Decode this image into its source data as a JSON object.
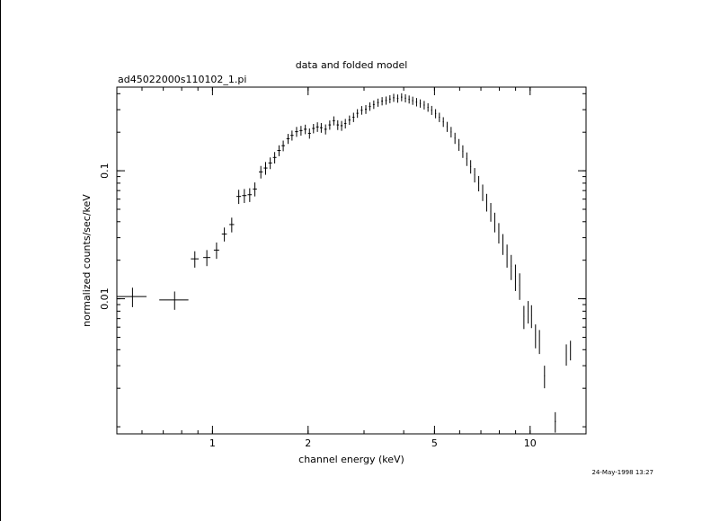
{
  "chart_data": {
    "type": "scatter",
    "title": "data and folded model",
    "subtitle": "ad45022000s110102_1.pi",
    "xlabel": "channel energy (keV)",
    "ylabel": "normalized counts/sec/keV",
    "timestamp": "24-May-1998 13:27",
    "xscale": "log",
    "yscale": "log",
    "xlim": [
      0.5,
      15
    ],
    "ylim": [
      0.00088,
      0.45
    ],
    "x_ticks": [
      {
        "value": 1,
        "label": "1"
      },
      {
        "value": 2,
        "label": "2"
      },
      {
        "value": 5,
        "label": "5"
      },
      {
        "value": 10,
        "label": "10"
      }
    ],
    "y_ticks": [
      {
        "value": 0.01,
        "label": "0.01"
      },
      {
        "value": 0.1,
        "label": "0.1"
      }
    ],
    "grid": false,
    "color": "#000000",
    "points": [
      [
        0.56,
        0.0104,
        0.06,
        0.0018
      ],
      [
        0.76,
        0.0098,
        0.08,
        0.0016
      ],
      [
        0.88,
        0.0205,
        0.025,
        0.003
      ],
      [
        0.96,
        0.021,
        0.025,
        0.003
      ],
      [
        1.03,
        0.024,
        0.02,
        0.0035
      ],
      [
        1.09,
        0.032,
        0.02,
        0.004
      ],
      [
        1.15,
        0.038,
        0.02,
        0.005
      ],
      [
        1.21,
        0.063,
        0.02,
        0.008
      ],
      [
        1.26,
        0.064,
        0.02,
        0.008
      ],
      [
        1.31,
        0.065,
        0.02,
        0.008
      ],
      [
        1.36,
        0.072,
        0.02,
        0.009
      ],
      [
        1.42,
        0.098,
        0.02,
        0.011
      ],
      [
        1.47,
        0.105,
        0.02,
        0.012
      ],
      [
        1.52,
        0.115,
        0.02,
        0.012
      ],
      [
        1.57,
        0.127,
        0.02,
        0.013
      ],
      [
        1.62,
        0.144,
        0.02,
        0.014
      ],
      [
        1.67,
        0.157,
        0.02,
        0.015
      ],
      [
        1.73,
        0.178,
        0.02,
        0.016
      ],
      [
        1.78,
        0.189,
        0.02,
        0.017
      ],
      [
        1.84,
        0.202,
        0.02,
        0.018
      ],
      [
        1.9,
        0.206,
        0.02,
        0.018
      ],
      [
        1.96,
        0.211,
        0.02,
        0.018
      ],
      [
        2.02,
        0.196,
        0.02,
        0.018
      ],
      [
        2.08,
        0.214,
        0.02,
        0.018
      ],
      [
        2.14,
        0.22,
        0.02,
        0.019
      ],
      [
        2.2,
        0.217,
        0.02,
        0.019
      ],
      [
        2.27,
        0.211,
        0.02,
        0.019
      ],
      [
        2.34,
        0.228,
        0.02,
        0.019
      ],
      [
        2.41,
        0.246,
        0.02,
        0.02
      ],
      [
        2.48,
        0.228,
        0.02,
        0.02
      ],
      [
        2.55,
        0.225,
        0.02,
        0.02
      ],
      [
        2.62,
        0.234,
        0.02,
        0.02
      ],
      [
        2.7,
        0.249,
        0.02,
        0.021
      ],
      [
        2.78,
        0.262,
        0.02,
        0.022
      ],
      [
        2.86,
        0.281,
        0.02,
        0.022
      ],
      [
        2.95,
        0.297,
        0.02,
        0.023
      ],
      [
        3.04,
        0.302,
        0.02,
        0.024
      ],
      [
        3.13,
        0.318,
        0.02,
        0.024
      ],
      [
        3.22,
        0.329,
        0.02,
        0.025
      ],
      [
        3.32,
        0.341,
        0.02,
        0.025
      ],
      [
        3.42,
        0.35,
        0.02,
        0.026
      ],
      [
        3.52,
        0.354,
        0.02,
        0.026
      ],
      [
        3.62,
        0.363,
        0.02,
        0.026
      ],
      [
        3.72,
        0.372,
        0.02,
        0.027
      ],
      [
        3.83,
        0.367,
        0.02,
        0.027
      ],
      [
        3.94,
        0.376,
        0.02,
        0.027
      ],
      [
        4.05,
        0.369,
        0.02,
        0.027
      ],
      [
        4.16,
        0.361,
        0.02,
        0.026
      ],
      [
        4.27,
        0.353,
        0.02,
        0.026
      ],
      [
        4.39,
        0.344,
        0.02,
        0.026
      ],
      [
        4.51,
        0.336,
        0.02,
        0.025
      ],
      [
        4.64,
        0.326,
        0.02,
        0.025
      ],
      [
        4.77,
        0.313,
        0.02,
        0.024
      ],
      [
        4.9,
        0.297,
        0.02,
        0.024
      ],
      [
        5.04,
        0.28,
        0.02,
        0.023
      ],
      [
        5.18,
        0.262,
        0.02,
        0.022
      ],
      [
        5.33,
        0.241,
        0.02,
        0.021
      ],
      [
        5.48,
        0.221,
        0.02,
        0.02
      ],
      [
        5.64,
        0.201,
        0.02,
        0.019
      ],
      [
        5.8,
        0.18,
        0.02,
        0.018
      ],
      [
        5.97,
        0.16,
        0.02,
        0.017
      ],
      [
        6.14,
        0.142,
        0.02,
        0.016
      ],
      [
        6.32,
        0.124,
        0.02,
        0.015
      ],
      [
        6.5,
        0.108,
        0.02,
        0.013
      ],
      [
        6.69,
        0.093,
        0.02,
        0.012
      ],
      [
        6.89,
        0.08,
        0.02,
        0.011
      ],
      [
        7.09,
        0.068,
        0.02,
        0.01
      ],
      [
        7.3,
        0.057,
        0.02,
        0.009
      ],
      [
        7.52,
        0.048,
        0.02,
        0.008
      ],
      [
        7.74,
        0.04,
        0.02,
        0.007
      ],
      [
        7.97,
        0.033,
        0.02,
        0.006
      ],
      [
        8.21,
        0.027,
        0.02,
        0.005
      ],
      [
        8.46,
        0.022,
        0.02,
        0.0045
      ],
      [
        8.72,
        0.018,
        0.02,
        0.004
      ],
      [
        8.99,
        0.015,
        0.02,
        0.0035
      ],
      [
        9.27,
        0.0128,
        0.02,
        0.003
      ],
      [
        9.56,
        0.0073,
        0.02,
        0.0015
      ],
      [
        9.86,
        0.008,
        0.02,
        0.0016
      ],
      [
        10.1,
        0.0074,
        0.02,
        0.0015
      ],
      [
        10.4,
        0.0052,
        0.02,
        0.0011
      ],
      [
        10.7,
        0.0047,
        0.02,
        0.001
      ],
      [
        11.1,
        0.0025,
        0.03,
        0.0005
      ],
      [
        12.0,
        0.0011,
        0.05,
        0.0002
      ],
      [
        13.0,
        0.0037,
        0.02,
        0.0007
      ],
      [
        13.4,
        0.004,
        0.02,
        0.0007
      ]
    ]
  }
}
